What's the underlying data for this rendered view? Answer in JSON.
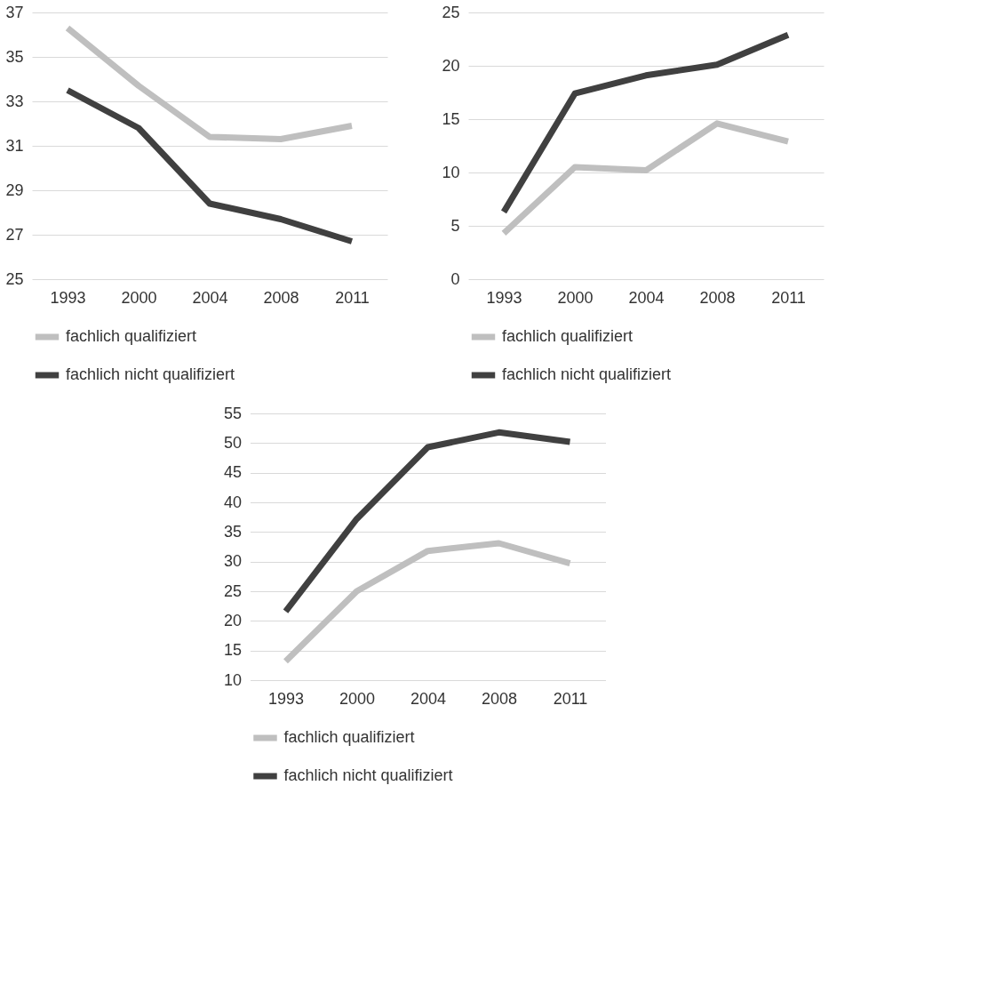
{
  "chart_data": [
    {
      "type": "line",
      "categories": [
        "1993",
        "2000",
        "2004",
        "2008",
        "2011"
      ],
      "ylim": [
        25,
        37
      ],
      "yticks": [
        25,
        27,
        29,
        31,
        33,
        35,
        37
      ],
      "grid": "y",
      "legend": "bottom",
      "line_style": "solid",
      "marker": "none",
      "series": [
        {
          "name": "fachlich qualifiziert",
          "color": "#bfbfbf",
          "values": [
            36.3,
            33.7,
            31.4,
            31.3,
            31.9
          ]
        },
        {
          "name": "fachlich nicht qualifiziert",
          "color": "#404040",
          "values": [
            33.5,
            31.8,
            28.4,
            27.7,
            26.7
          ]
        }
      ]
    },
    {
      "type": "line",
      "categories": [
        "1993",
        "2000",
        "2004",
        "2008",
        "2011"
      ],
      "ylim": [
        0,
        25
      ],
      "yticks": [
        0,
        5,
        10,
        15,
        20,
        25
      ],
      "grid": "y",
      "legend": "bottom",
      "line_style": "solid",
      "marker": "none",
      "series": [
        {
          "name": "fachlich qualifiziert",
          "color": "#bfbfbf",
          "values": [
            4.3,
            10.5,
            10.2,
            14.6,
            12.9
          ]
        },
        {
          "name": "fachlich nicht qualifiziert",
          "color": "#404040",
          "values": [
            6.3,
            17.4,
            19.1,
            20.1,
            22.9
          ]
        }
      ]
    },
    {
      "type": "line",
      "categories": [
        "1993",
        "2000",
        "2004",
        "2008",
        "2011"
      ],
      "ylim": [
        10,
        55
      ],
      "yticks": [
        10,
        15,
        20,
        25,
        30,
        35,
        40,
        45,
        50,
        55
      ],
      "grid": "y",
      "legend": "bottom",
      "line_style": "solid",
      "marker": "none",
      "series": [
        {
          "name": "fachlich qualifiziert",
          "color": "#bfbfbf",
          "values": [
            13.2,
            25.0,
            31.8,
            33.1,
            29.7
          ]
        },
        {
          "name": "fachlich nicht qualifiziert",
          "color": "#404040",
          "values": [
            21.6,
            37.2,
            49.3,
            51.8,
            50.2
          ]
        }
      ]
    }
  ]
}
